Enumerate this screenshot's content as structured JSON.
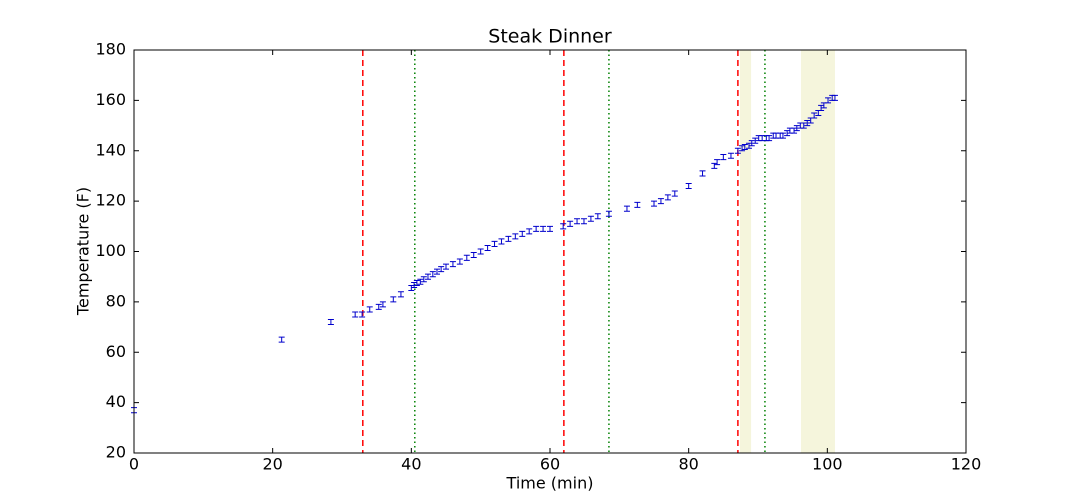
{
  "chart_data": {
    "type": "errorbar",
    "title": "Steak Dinner",
    "xlabel": "Time (min)",
    "ylabel": "Temperature (F)",
    "x": [
      0,
      21.3,
      28.4,
      31.9,
      32.9,
      34,
      35.3,
      35.9,
      37.4,
      38.5,
      40,
      40.4,
      40.8,
      41.3,
      41.8,
      42.4,
      43.1,
      43.7,
      44.3,
      45,
      46,
      47,
      48,
      49,
      50,
      51,
      52,
      53,
      54,
      55,
      56,
      57,
      58,
      59,
      60,
      61.9,
      62.9,
      63.9,
      64.9,
      65.9,
      66.9,
      68.5,
      71.1,
      72.6,
      75,
      76,
      77,
      78,
      80,
      82,
      83.7,
      84.1,
      85,
      86.1,
      87.1,
      87.7,
      88.1,
      88.7,
      89.1,
      89.6,
      90.1,
      90.6,
      91.2,
      91.6,
      92.2,
      92.6,
      93.2,
      93.6,
      94.2,
      94.6,
      95.2,
      95.6,
      96.1,
      96.6,
      97.1,
      97.6,
      98.1,
      98.7,
      99.1,
      99.5,
      100.1,
      100.7,
      101.1
    ],
    "values": [
      37,
      65,
      72,
      75,
      75,
      77,
      78,
      79,
      81,
      83,
      85.5,
      86.7,
      87.5,
      88,
      89,
      90,
      91,
      92,
      93,
      94,
      95,
      96,
      97.5,
      98.6,
      100,
      101.4,
      103,
      104,
      105,
      106,
      107,
      108,
      109,
      109,
      109,
      110,
      111,
      112,
      112,
      113,
      114,
      115,
      117,
      118.5,
      119,
      120,
      121.5,
      123,
      126,
      131,
      134,
      135.5,
      137.5,
      138,
      140,
      141,
      141.5,
      142,
      143,
      144,
      145,
      145,
      145,
      145,
      146,
      146,
      146,
      146,
      147,
      148,
      148,
      149,
      150,
      150,
      151,
      152,
      154,
      155,
      157,
      158,
      160,
      161,
      161
    ],
    "yerr": 1,
    "color": "#0000cc",
    "vlines": [
      {
        "x": 33,
        "color": "#ff0000",
        "style": "dashed"
      },
      {
        "x": 62,
        "color": "#ff0000",
        "style": "dashed"
      },
      {
        "x": 87.1,
        "color": "#ff0000",
        "style": "dashed"
      },
      {
        "x": 40.5,
        "color": "#008000",
        "style": "dotted"
      },
      {
        "x": 68.5,
        "color": "#008000",
        "style": "dotted"
      },
      {
        "x": 91,
        "color": "#008000",
        "style": "dotted"
      }
    ],
    "spans": [
      {
        "x": [
          87.4,
          89.0
        ],
        "color": "#f5f5dc"
      },
      {
        "x": [
          96.2,
          101.1
        ],
        "color": "#f5f5dc"
      }
    ],
    "xlim": [
      0,
      120
    ],
    "xticks": [
      0,
      20,
      40,
      60,
      80,
      100,
      120
    ],
    "ylim": [
      20,
      180
    ],
    "yticks": [
      20,
      40,
      60,
      80,
      100,
      120,
      140,
      160,
      180
    ]
  }
}
